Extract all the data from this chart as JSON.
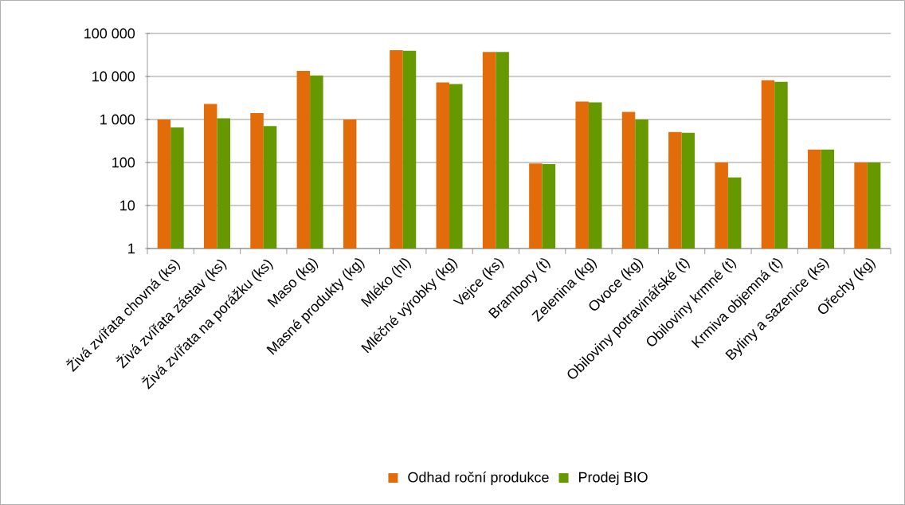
{
  "chart_data": {
    "type": "bar",
    "categories": [
      "Živá zvířata chovná (ks)",
      "Živá zvířata zástav (ks)",
      "Živá zvířata na porážku (ks)",
      "Maso (kg)",
      "Masné produkty (kg)",
      "Mléko (hl)",
      "Mléčné výrobky (kg)",
      "Vejce (ks)",
      "Brambory (t)",
      "Zelenina (kg)",
      "Ovoce (kg)",
      "Obiloviny potravinářské (t)",
      "Obiloviny krmné (t)",
      "Krmiva objemná (t)",
      "Byliny a sazenice (ks)",
      "Ořechy (kg)"
    ],
    "series": [
      {
        "name": "Odhad roční produkce",
        "color": "#e36c0a",
        "values": [
          1000,
          2300,
          1400,
          13500,
          1000,
          41000,
          7300,
          37000,
          95,
          2600,
          1500,
          510,
          100,
          8200,
          200,
          100
        ]
      },
      {
        "name": "Prodej BIO",
        "color": "#669900",
        "values": [
          650,
          1070,
          700,
          10600,
          null,
          39500,
          6700,
          37000,
          92,
          2500,
          1000,
          490,
          45,
          7500,
          200,
          100
        ]
      }
    ],
    "log": "y",
    "ylim": [
      1,
      100000
    ],
    "yticks": [
      1,
      10,
      100,
      {
        "value": 1000,
        "label": "1 000"
      },
      {
        "value": 10000,
        "label": "10 000"
      },
      {
        "value": 100000,
        "label": "100 000"
      }
    ],
    "grid": "y",
    "legend": "bottom"
  }
}
